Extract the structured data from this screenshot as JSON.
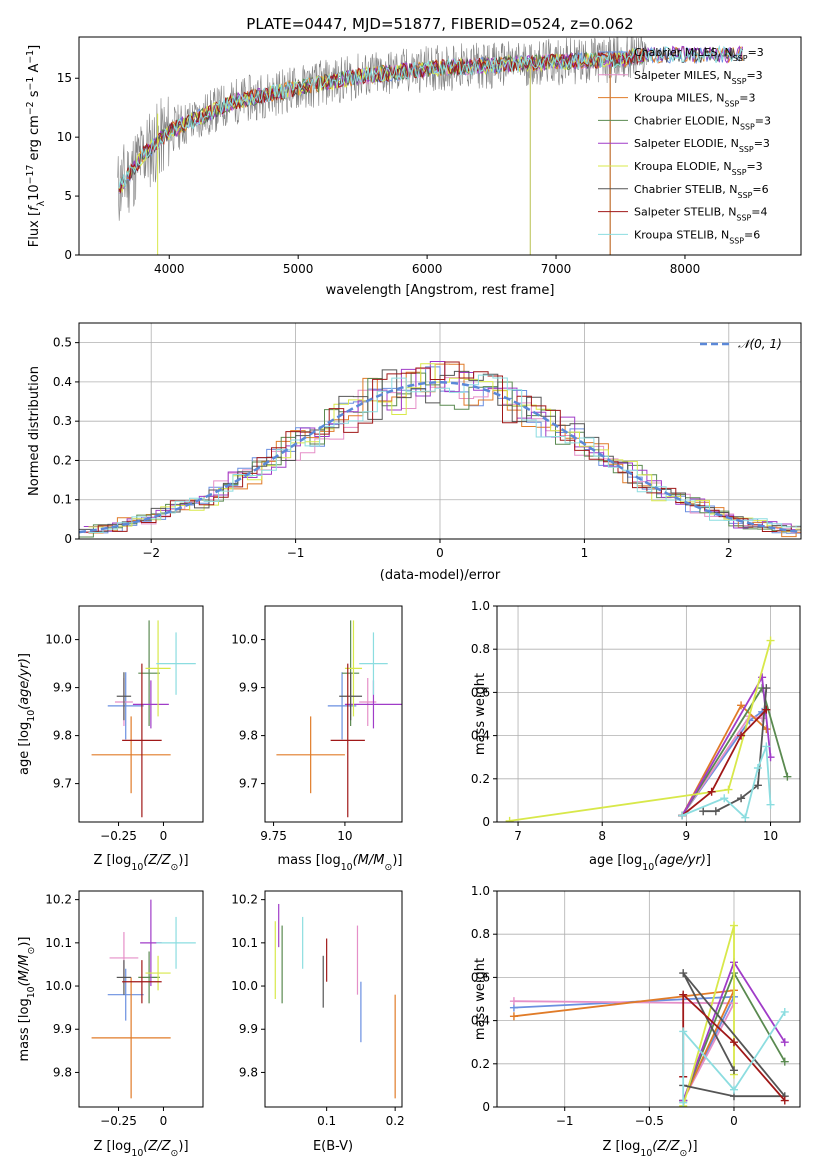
{
  "title": "PLATE=0447, MJD=51877, FIBERID=0524, z=0.062",
  "series": [
    {
      "name": "Chabrier MILES, N_SSP=3",
      "label_a": "Chabrier MILES, N",
      "label_b": "=3",
      "color": "#6a8fe0"
    },
    {
      "name": "Salpeter MILES, N_SSP=3",
      "label_a": "Salpeter MILES, N",
      "label_b": "=3",
      "color": "#e58fc8"
    },
    {
      "name": "Kroupa MILES, N_SSP=3",
      "label_a": "Kroupa MILES, N",
      "label_b": "=3",
      "color": "#e07b28"
    },
    {
      "name": "Chabrier ELODIE, N_SSP=3",
      "label_a": "Chabrier ELODIE, N",
      "label_b": "=3",
      "color": "#5a8a50"
    },
    {
      "name": "Salpeter ELODIE, N_SSP=3",
      "label_a": "Salpeter ELODIE, N",
      "label_b": "=3",
      "color": "#a03cc8"
    },
    {
      "name": "Kroupa ELODIE, N_SSP=3",
      "label_a": "Kroupa ELODIE, N",
      "label_b": "=3",
      "color": "#d8e84a"
    },
    {
      "name": "Chabrier STELIB, N_SSP=6",
      "label_a": "Chabrier STELIB, N",
      "label_b": "=6",
      "color": "#555555"
    },
    {
      "name": "Salpeter STELIB, N_SSP=4",
      "label_a": "Salpeter STELIB, N",
      "label_b": "=4",
      "color": "#a01818"
    },
    {
      "name": "Kroupa STELIB, N_SSP=6",
      "label_a": "Kroupa STELIB, N",
      "label_b": "=6",
      "color": "#8cdde0"
    }
  ],
  "chart_data": [
    {
      "type": "line",
      "xlabel": "wavelength [Angstrom, rest frame]",
      "ylabel": "Flux [f_λ 10^-17 erg cm^-2 s^-1 A^-1]",
      "xlim": [
        3300,
        8900
      ],
      "ylim": [
        0,
        18.5
      ],
      "xticks": [
        4000,
        5000,
        6000,
        7000,
        8000
      ],
      "yticks": [
        0,
        5,
        10,
        15
      ],
      "data_color": "#808080",
      "continuum": {
        "x": [
          3600,
          3800,
          4000,
          4300,
          4500,
          5000,
          5500,
          6000,
          6500,
          7000,
          7500,
          7700
        ],
        "y": [
          5.5,
          8.5,
          10.5,
          12,
          13,
          14.2,
          15.2,
          15.8,
          16.1,
          16.4,
          16.6,
          17
        ]
      },
      "legend": "upper right"
    },
    {
      "type": "step",
      "xlabel": "(data-model)/error",
      "ylabel": "Normed distribution",
      "xlim": [
        -2.5,
        2.5
      ],
      "ylim": [
        0,
        0.55
      ],
      "xticks": [
        -2,
        -1,
        0,
        1,
        2
      ],
      "yticks": [
        0.0,
        0.1,
        0.2,
        0.3,
        0.4,
        0.5
      ],
      "reference": {
        "name": "N(0,1)",
        "label": "𝒩(0, 1)",
        "color": "#5b88d8"
      },
      "grid": true,
      "legend": "upper right"
    },
    {
      "type": "errorbar",
      "xlabel": "Z [log10(Z/Z⊙)]",
      "ylabel": "age  [log10(age/yr)]",
      "xlim": [
        -0.47,
        0.22
      ],
      "ylim": [
        9.62,
        10.07
      ],
      "xticks": [
        -0.25,
        0.0
      ],
      "yticks": [
        9.7,
        9.8,
        9.9,
        10.0
      ],
      "points": [
        {
          "x": -0.21,
          "y": 9.862,
          "xe": 0.1,
          "ye": 0.07,
          "s": 0
        },
        {
          "x": -0.22,
          "y": 9.87,
          "xe": 0.05,
          "ye": 0.05,
          "s": 1
        },
        {
          "x": -0.18,
          "y": 9.76,
          "xe": 0.22,
          "ye": 0.08,
          "s": 2
        },
        {
          "x": -0.08,
          "y": 9.93,
          "xe": 0.06,
          "ye": 0.11,
          "s": 3
        },
        {
          "x": -0.07,
          "y": 9.865,
          "xe": 0.1,
          "ye": 0.05,
          "s": 4
        },
        {
          "x": -0.03,
          "y": 9.94,
          "xe": 0.07,
          "ye": 0.1,
          "s": 5
        },
        {
          "x": -0.22,
          "y": 9.882,
          "xe": 0.04,
          "ye": 0.05,
          "s": 6
        },
        {
          "x": -0.12,
          "y": 9.79,
          "xe": 0.11,
          "ye": 0.16,
          "s": 7
        },
        {
          "x": 0.07,
          "y": 9.95,
          "xe": 0.11,
          "ye": 0.065,
          "s": 8
        }
      ]
    },
    {
      "type": "errorbar",
      "xlabel": "mass [log10(M/M⊙)]",
      "ylabel": "",
      "xlim": [
        9.72,
        10.2
      ],
      "ylim": [
        9.62,
        10.07
      ],
      "xticks": [
        9.75,
        10.0
      ],
      "yticks": [
        9.7,
        9.8,
        9.9,
        10.0
      ],
      "points": [
        {
          "x": 9.99,
          "y": 9.862,
          "xe": 0.05,
          "ye": 0.07,
          "s": 0
        },
        {
          "x": 10.08,
          "y": 9.87,
          "xe": 0.03,
          "ye": 0.05,
          "s": 1
        },
        {
          "x": 9.88,
          "y": 9.76,
          "xe": 0.12,
          "ye": 0.08,
          "s": 2
        },
        {
          "x": 10.02,
          "y": 9.93,
          "xe": 0.03,
          "ye": 0.11,
          "s": 3
        },
        {
          "x": 10.1,
          "y": 9.865,
          "xe": 0.1,
          "ye": 0.05,
          "s": 4
        },
        {
          "x": 10.03,
          "y": 9.94,
          "xe": 0.03,
          "ye": 0.1,
          "s": 5
        },
        {
          "x": 10.02,
          "y": 9.882,
          "xe": 0.04,
          "ye": 0.05,
          "s": 6
        },
        {
          "x": 10.01,
          "y": 9.79,
          "xe": 0.06,
          "ye": 0.16,
          "s": 7
        },
        {
          "x": 10.1,
          "y": 9.95,
          "xe": 0.05,
          "ye": 0.065,
          "s": 8
        }
      ]
    },
    {
      "type": "line",
      "xlabel": "age  [log10(age/yr)]",
      "ylabel": "mass weight",
      "xlim": [
        6.75,
        10.35
      ],
      "ylim": [
        0,
        1.0
      ],
      "xticks": [
        7,
        8,
        9,
        10
      ],
      "yticks": [
        0.0,
        0.2,
        0.4,
        0.6,
        0.8,
        1.0
      ],
      "grid": true,
      "lines": [
        {
          "s": 0,
          "x": [
            8.95,
            9.75,
            9.9
          ],
          "y": [
            0.03,
            0.47,
            0.51
          ]
        },
        {
          "s": 1,
          "x": [
            8.95,
            9.75,
            9.9
          ],
          "y": [
            0.03,
            0.49,
            0.48
          ]
        },
        {
          "s": 2,
          "x": [
            8.95,
            9.65,
            9.95
          ],
          "y": [
            0.03,
            0.54,
            0.43
          ]
        },
        {
          "s": 3,
          "x": [
            8.95,
            9.9,
            10.2
          ],
          "y": [
            0.03,
            0.62,
            0.21
          ]
        },
        {
          "s": 4,
          "x": [
            8.95,
            9.9,
            10.0
          ],
          "y": [
            0.03,
            0.67,
            0.3
          ]
        },
        {
          "s": 5,
          "x": [
            6.9,
            9.5,
            10.0
          ],
          "y": [
            0.005,
            0.15,
            0.84
          ]
        },
        {
          "s": 6,
          "x": [
            9.2,
            9.35,
            9.65,
            9.85,
            9.95
          ],
          "y": [
            0.05,
            0.05,
            0.11,
            0.17,
            0.62
          ]
        },
        {
          "s": 7,
          "x": [
            8.95,
            9.3,
            9.65,
            9.95
          ],
          "y": [
            0.03,
            0.14,
            0.4,
            0.52
          ]
        },
        {
          "s": 8,
          "x": [
            8.95,
            9.45,
            9.7,
            9.85,
            9.95,
            10.0
          ],
          "y": [
            0.03,
            0.11,
            0.02,
            0.25,
            0.35,
            0.08
          ]
        }
      ]
    },
    {
      "type": "errorbar",
      "xlabel": "Z [log10(Z/Z⊙)]",
      "ylabel": "mass [log10(M/M⊙)]",
      "xlim": [
        -0.47,
        0.22
      ],
      "ylim": [
        9.72,
        10.22
      ],
      "xticks": [
        -0.25,
        0.0
      ],
      "yticks": [
        9.8,
        9.9,
        10.0,
        10.1,
        10.2
      ],
      "points": [
        {
          "x": -0.21,
          "y": 9.98,
          "xe": 0.1,
          "ye": 0.06,
          "s": 0
        },
        {
          "x": -0.22,
          "y": 10.065,
          "xe": 0.08,
          "ye": 0.06,
          "s": 1
        },
        {
          "x": -0.18,
          "y": 9.88,
          "xe": 0.22,
          "ye": 0.14,
          "s": 2
        },
        {
          "x": -0.08,
          "y": 10.02,
          "xe": 0.06,
          "ye": 0.06,
          "s": 3
        },
        {
          "x": -0.07,
          "y": 10.1,
          "xe": 0.06,
          "ye": 0.1,
          "s": 4
        },
        {
          "x": -0.03,
          "y": 10.03,
          "xe": 0.07,
          "ye": 0.04,
          "s": 5
        },
        {
          "x": -0.22,
          "y": 10.02,
          "xe": 0.04,
          "ye": 0.04,
          "s": 6
        },
        {
          "x": -0.12,
          "y": 10.01,
          "xe": 0.11,
          "ye": 0.05,
          "s": 7
        },
        {
          "x": 0.07,
          "y": 10.1,
          "xe": 0.11,
          "ye": 0.06,
          "s": 8
        }
      ]
    },
    {
      "type": "errorbar",
      "xlabel": "E(B-V)",
      "ylabel": "",
      "xlim": [
        0.01,
        0.21
      ],
      "ylim": [
        9.72,
        10.22
      ],
      "xticks": [
        0.1,
        0.2
      ],
      "yticks": [
        9.8,
        9.9,
        10.0,
        10.1,
        10.2
      ],
      "points": [
        {
          "x": 0.15,
          "y": 9.94,
          "xe": 0,
          "ye": 0.07,
          "s": 0
        },
        {
          "x": 0.145,
          "y": 10.06,
          "xe": 0,
          "ye": 0.08,
          "s": 1
        },
        {
          "x": 0.2,
          "y": 9.86,
          "xe": 0,
          "ye": 0.12,
          "s": 2
        },
        {
          "x": 0.035,
          "y": 10.05,
          "xe": 0,
          "ye": 0.09,
          "s": 3
        },
        {
          "x": 0.03,
          "y": 10.14,
          "xe": 0,
          "ye": 0.05,
          "s": 4
        },
        {
          "x": 0.025,
          "y": 10.06,
          "xe": 0,
          "ye": 0.09,
          "s": 5
        },
        {
          "x": 0.095,
          "y": 10.01,
          "xe": 0,
          "ye": 0.06,
          "s": 6
        },
        {
          "x": 0.1,
          "y": 10.06,
          "xe": 0,
          "ye": 0.05,
          "s": 7
        },
        {
          "x": 0.065,
          "y": 10.1,
          "xe": 0,
          "ye": 0.06,
          "s": 8
        }
      ]
    },
    {
      "type": "line",
      "xlabel": "Z [log10(Z/Z⊙)]",
      "ylabel": "mass weight",
      "xlim": [
        -1.4,
        0.39
      ],
      "ylim": [
        0,
        1.0
      ],
      "xticks": [
        -1.0,
        -0.5,
        0.0
      ],
      "yticks": [
        0.0,
        0.2,
        0.4,
        0.6,
        0.8,
        1.0
      ],
      "grid": true,
      "lines": [
        {
          "s": 0,
          "x": [
            -1.3,
            0.0,
            -0.3
          ],
          "y": [
            0.46,
            0.51,
            0.03
          ]
        },
        {
          "s": 1,
          "x": [
            -1.3,
            0.0,
            -0.3
          ],
          "y": [
            0.49,
            0.48,
            0.03
          ]
        },
        {
          "s": 2,
          "x": [
            -1.3,
            0.0,
            -0.3
          ],
          "y": [
            0.42,
            0.54,
            0.03
          ]
        },
        {
          "s": 3,
          "x": [
            -0.3,
            0.0,
            0.3
          ],
          "y": [
            0.03,
            0.62,
            0.21
          ]
        },
        {
          "s": 4,
          "x": [
            -0.3,
            0.0,
            0.3
          ],
          "y": [
            0.03,
            0.67,
            0.3
          ]
        },
        {
          "s": 5,
          "x": [
            -0.3,
            0.0,
            0.0
          ],
          "y": [
            0.005,
            0.84,
            0.15
          ]
        },
        {
          "s": 6,
          "x": [
            -0.3,
            0.0,
            0.3,
            -0.3,
            0.0
          ],
          "y": [
            0.1,
            0.05,
            0.05,
            0.62,
            0.17
          ]
        },
        {
          "s": 7,
          "x": [
            0.3,
            0.0,
            -0.3,
            -0.3
          ],
          "y": [
            0.03,
            0.3,
            0.52,
            0.14
          ]
        },
        {
          "s": 8,
          "x": [
            -0.3,
            -0.3,
            0.0,
            0.3
          ],
          "y": [
            0.02,
            0.35,
            0.08,
            0.44
          ]
        }
      ]
    }
  ]
}
